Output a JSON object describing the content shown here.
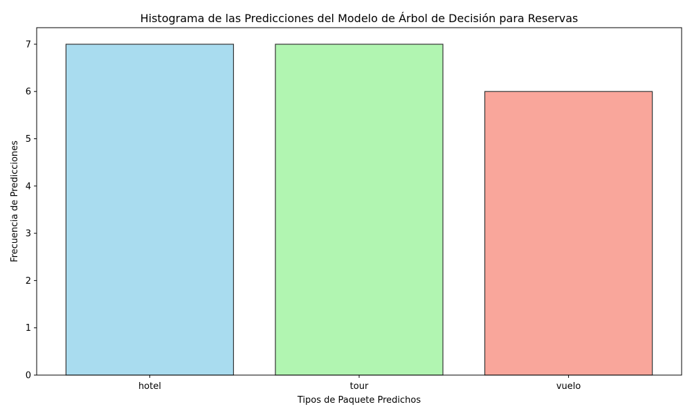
{
  "chart_data": {
    "type": "bar",
    "title": "Histograma de las Predicciones del Modelo de Árbol de Decisión para Reservas",
    "xlabel": "Tipos de Paquete Predichos",
    "ylabel": "Frecuencia de Predicciones",
    "categories": [
      "hotel",
      "tour",
      "vuelo"
    ],
    "values": [
      7,
      7,
      6
    ],
    "colors": [
      "#a9dcef",
      "#b1f5b1",
      "#f9a69b"
    ],
    "edge_color": "#333333",
    "ylim": [
      0,
      7.35
    ],
    "yticks": [
      0,
      1,
      2,
      3,
      4,
      5,
      6,
      7
    ],
    "grid": false
  }
}
